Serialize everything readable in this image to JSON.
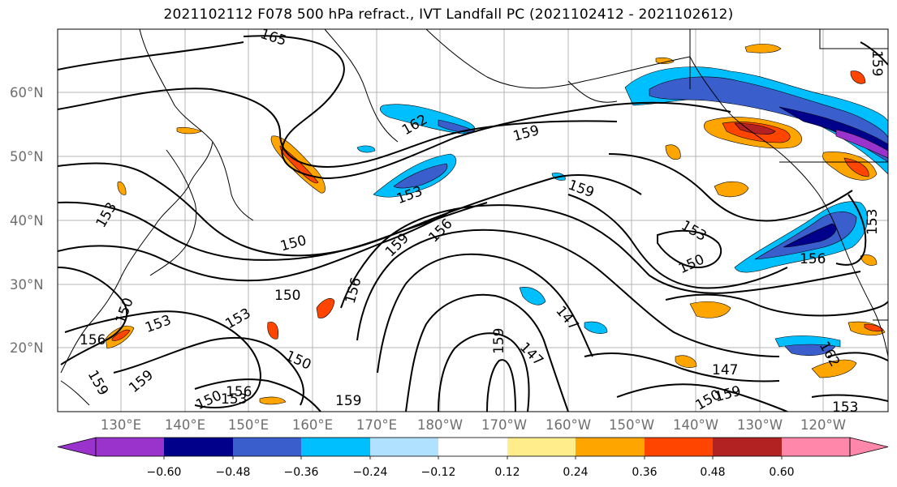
{
  "title": "2021102112 F078 500 hPa refract., IVT Landfall PC (2021102412 - 2021102612)",
  "map": {
    "lat_ticks": [
      "20°N",
      "30°N",
      "40°N",
      "50°N",
      "60°N"
    ],
    "lon_ticks": [
      "130°E",
      "140°E",
      "150°E",
      "160°E",
      "170°E",
      "180°W",
      "170°W",
      "160°W",
      "150°W",
      "140°W",
      "130°W",
      "120°W"
    ],
    "contour_labels": [
      "165",
      "162",
      "159",
      "159",
      "153",
      "156",
      "150",
      "159",
      "156",
      "153",
      "150",
      "150",
      "156",
      "153",
      "153",
      "150",
      "150",
      "156",
      "159",
      "153",
      "153",
      "150",
      "156",
      "147",
      "147",
      "159",
      "159",
      "159",
      "150",
      "159",
      "162",
      "153",
      "159",
      "147",
      "153",
      "150",
      "159",
      "156",
      "153"
    ]
  },
  "colorbar": {
    "tick_labels": [
      "−0.60",
      "−0.48",
      "−0.36",
      "−0.24",
      "−0.12",
      "0.12",
      "0.24",
      "0.36",
      "0.48",
      "0.60"
    ],
    "colors": [
      "#9933cc",
      "#00008b",
      "#3a5fcd",
      "#00bfff",
      "#b0e2ff",
      "#ffffff",
      "#ffec8b",
      "#ffa500",
      "#ff4500",
      "#b22222",
      "#ff88aa"
    ]
  }
}
